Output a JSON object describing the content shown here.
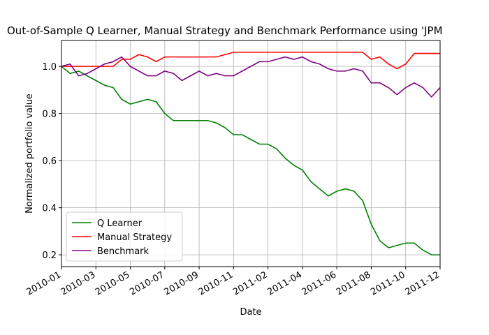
{
  "chart_data": {
    "type": "line",
    "title": "Out-of-Sample Q Learner, Manual Strategy and Benchmark Performance using 'JPM",
    "x_label": "Date",
    "y_label": "Normalized portfolio value",
    "x": [
      0,
      0.25,
      0.5,
      0.75,
      1,
      1.25,
      1.5,
      1.75,
      2,
      2.25,
      2.5,
      2.75,
      3,
      3.25,
      3.5,
      3.75,
      4,
      4.25,
      4.5,
      4.75,
      5,
      5.25,
      5.5,
      5.75,
      6,
      6.25,
      6.5,
      6.75,
      7,
      7.25,
      7.5,
      7.75,
      8,
      8.25,
      8.5,
      8.75,
      9,
      9.25,
      9.5,
      9.75,
      10,
      10.25,
      10.5,
      10.75,
      11
    ],
    "series": [
      {
        "name": "Q Learner",
        "color": "green",
        "values": [
          1.0,
          0.97,
          0.98,
          0.96,
          0.94,
          0.92,
          0.91,
          0.86,
          0.84,
          0.85,
          0.86,
          0.85,
          0.8,
          0.77,
          0.77,
          0.77,
          0.77,
          0.77,
          0.76,
          0.74,
          0.71,
          0.71,
          0.69,
          0.67,
          0.67,
          0.65,
          0.61,
          0.58,
          0.56,
          0.51,
          0.48,
          0.45,
          0.47,
          0.48,
          0.47,
          0.43,
          0.33,
          0.26,
          0.23,
          0.24,
          0.25,
          0.25,
          0.22,
          0.2,
          0.2
        ]
      },
      {
        "name": "Manual Strategy",
        "color": "red",
        "values": [
          1.0,
          1.0,
          1.0,
          1.0,
          1.0,
          1.0,
          1.0,
          1.03,
          1.03,
          1.05,
          1.04,
          1.02,
          1.04,
          1.04,
          1.04,
          1.04,
          1.04,
          1.04,
          1.04,
          1.05,
          1.06,
          1.06,
          1.06,
          1.06,
          1.06,
          1.06,
          1.06,
          1.06,
          1.06,
          1.06,
          1.06,
          1.06,
          1.06,
          1.06,
          1.06,
          1.06,
          1.03,
          1.04,
          1.01,
          0.99,
          1.01,
          1.055,
          1.055,
          1.055,
          1.055
        ]
      },
      {
        "name": "Benchmark",
        "color": "purple",
        "values": [
          1.0,
          1.01,
          0.96,
          0.97,
          0.99,
          1.01,
          1.02,
          1.04,
          1.0,
          0.98,
          0.96,
          0.96,
          0.98,
          0.97,
          0.94,
          0.96,
          0.98,
          0.96,
          0.97,
          0.96,
          0.96,
          0.98,
          1.0,
          1.02,
          1.02,
          1.03,
          1.04,
          1.03,
          1.04,
          1.02,
          1.01,
          0.99,
          0.98,
          0.98,
          0.99,
          0.98,
          0.93,
          0.93,
          0.91,
          0.88,
          0.91,
          0.93,
          0.91,
          0.87,
          0.91
        ]
      }
    ],
    "xlim": [
      0,
      11
    ],
    "xticks": [
      {
        "value": 0,
        "label": "2010-01"
      },
      {
        "value": 1,
        "label": "2010-03"
      },
      {
        "value": 2,
        "label": "2010-05"
      },
      {
        "value": 3,
        "label": "2010-07"
      },
      {
        "value": 4,
        "label": "2010-09"
      },
      {
        "value": 5,
        "label": "2010-11"
      },
      {
        "value": 6,
        "label": "2011-02"
      },
      {
        "value": 7,
        "label": "2011-04"
      },
      {
        "value": 8,
        "label": "2011-06"
      },
      {
        "value": 9,
        "label": "2011-08"
      },
      {
        "value": 10,
        "label": "2011-10"
      },
      {
        "value": 11,
        "label": "2011-12"
      }
    ],
    "ylim": [
      0.15,
      1.11
    ],
    "yticks": [
      0.2,
      0.4,
      0.6,
      0.8,
      {
        "value": 1.0,
        "label": "1.0"
      }
    ],
    "grid": true,
    "legend": "lower left"
  }
}
